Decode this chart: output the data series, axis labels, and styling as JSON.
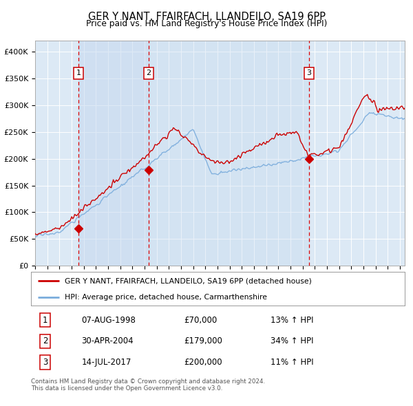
{
  "title": "GER Y NANT, FFAIRFACH, LLANDEILO, SA19 6PP",
  "subtitle": "Price paid vs. HM Land Registry's House Price Index (HPI)",
  "ylim": [
    0,
    420000
  ],
  "yticks": [
    0,
    50000,
    100000,
    150000,
    200000,
    250000,
    300000,
    350000,
    400000
  ],
  "ytick_labels": [
    "£0",
    "£50K",
    "£100K",
    "£150K",
    "£200K",
    "£250K",
    "£300K",
    "£350K",
    "£400K"
  ],
  "xlim": [
    1995.0,
    2025.4
  ],
  "sale_dates_year": [
    1998.58,
    2004.33,
    2017.54
  ],
  "sale_prices": [
    70000,
    179000,
    200000
  ],
  "sale_labels": [
    "1",
    "2",
    "3"
  ],
  "legend_red": "GER Y NANT, FFAIRFACH, LLANDEILO, SA19 6PP (detached house)",
  "legend_blue": "HPI: Average price, detached house, Carmarthenshire",
  "table_rows": [
    [
      "1",
      "07-AUG-1998",
      "£70,000",
      "13% ↑ HPI"
    ],
    [
      "2",
      "30-APR-2004",
      "£179,000",
      "34% ↑ HPI"
    ],
    [
      "3",
      "14-JUL-2017",
      "£200,000",
      "11% ↑ HPI"
    ]
  ],
  "footer": "Contains HM Land Registry data © Crown copyright and database right 2024.\nThis data is licensed under the Open Government Licence v3.0.",
  "red_color": "#cc0000",
  "blue_color": "#7aacdc",
  "bg_color": "#dce9f5",
  "grid_color": "#ffffff",
  "dashed_color": "#dd0000",
  "span_color": "#c5d8ee"
}
